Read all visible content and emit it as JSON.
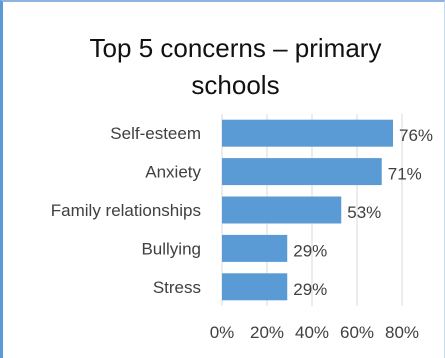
{
  "chart_data": {
    "type": "bar",
    "orientation": "horizontal",
    "title": "Top 5 concerns – primary schools",
    "categories": [
      "Self-esteem",
      "Anxiety",
      "Family relationships",
      "Bullying",
      "Stress"
    ],
    "values": [
      76,
      71,
      53,
      29,
      29
    ],
    "data_labels": [
      "76%",
      "71%",
      "53%",
      "29%",
      "29%"
    ],
    "x_ticks": [
      "0%",
      "20%",
      "40%",
      "60%",
      "80%"
    ],
    "xlim": [
      0,
      80
    ],
    "xlabel": "",
    "ylabel": "",
    "grid": true,
    "legend": "none",
    "bar_color": "#5b9bd5",
    "grid_color": "#d9d9d9"
  }
}
